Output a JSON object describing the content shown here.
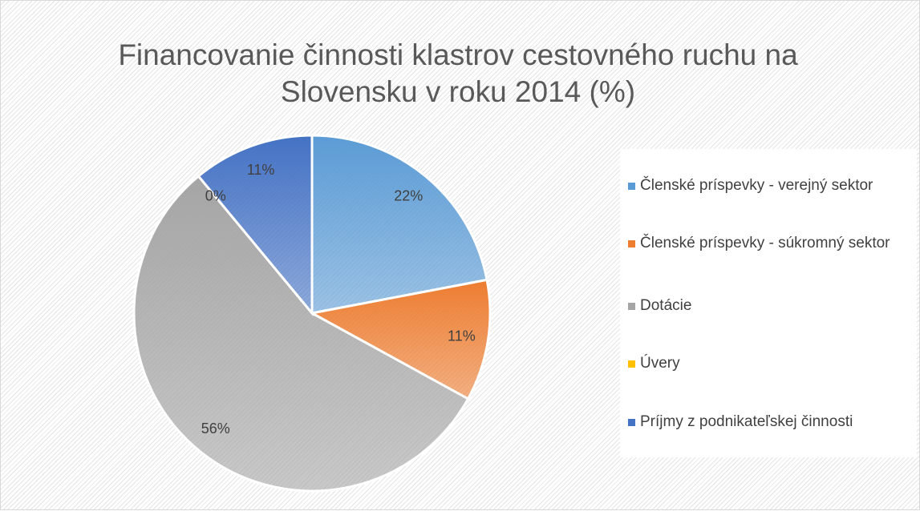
{
  "chart_data": {
    "type": "pie",
    "title": "Financovanie činnosti klastrov cestovného ruchu na Slovensku v roku 2014 (%)",
    "categories": [
      "Členské príspevky - verejný sektor",
      "Členské príspevky - súkromný sektor",
      "Dotácie",
      "Úvery",
      "Príjmy z podnikateľskej činnosti"
    ],
    "values": [
      22,
      11,
      56,
      0,
      11
    ],
    "value_labels": [
      "22%",
      "11%",
      "56%",
      "0%",
      "11%"
    ],
    "colors": [
      "#5b9bd5",
      "#ed7d31",
      "#a5a5a5",
      "#ffc000",
      "#4472c4"
    ],
    "legend": "right"
  }
}
